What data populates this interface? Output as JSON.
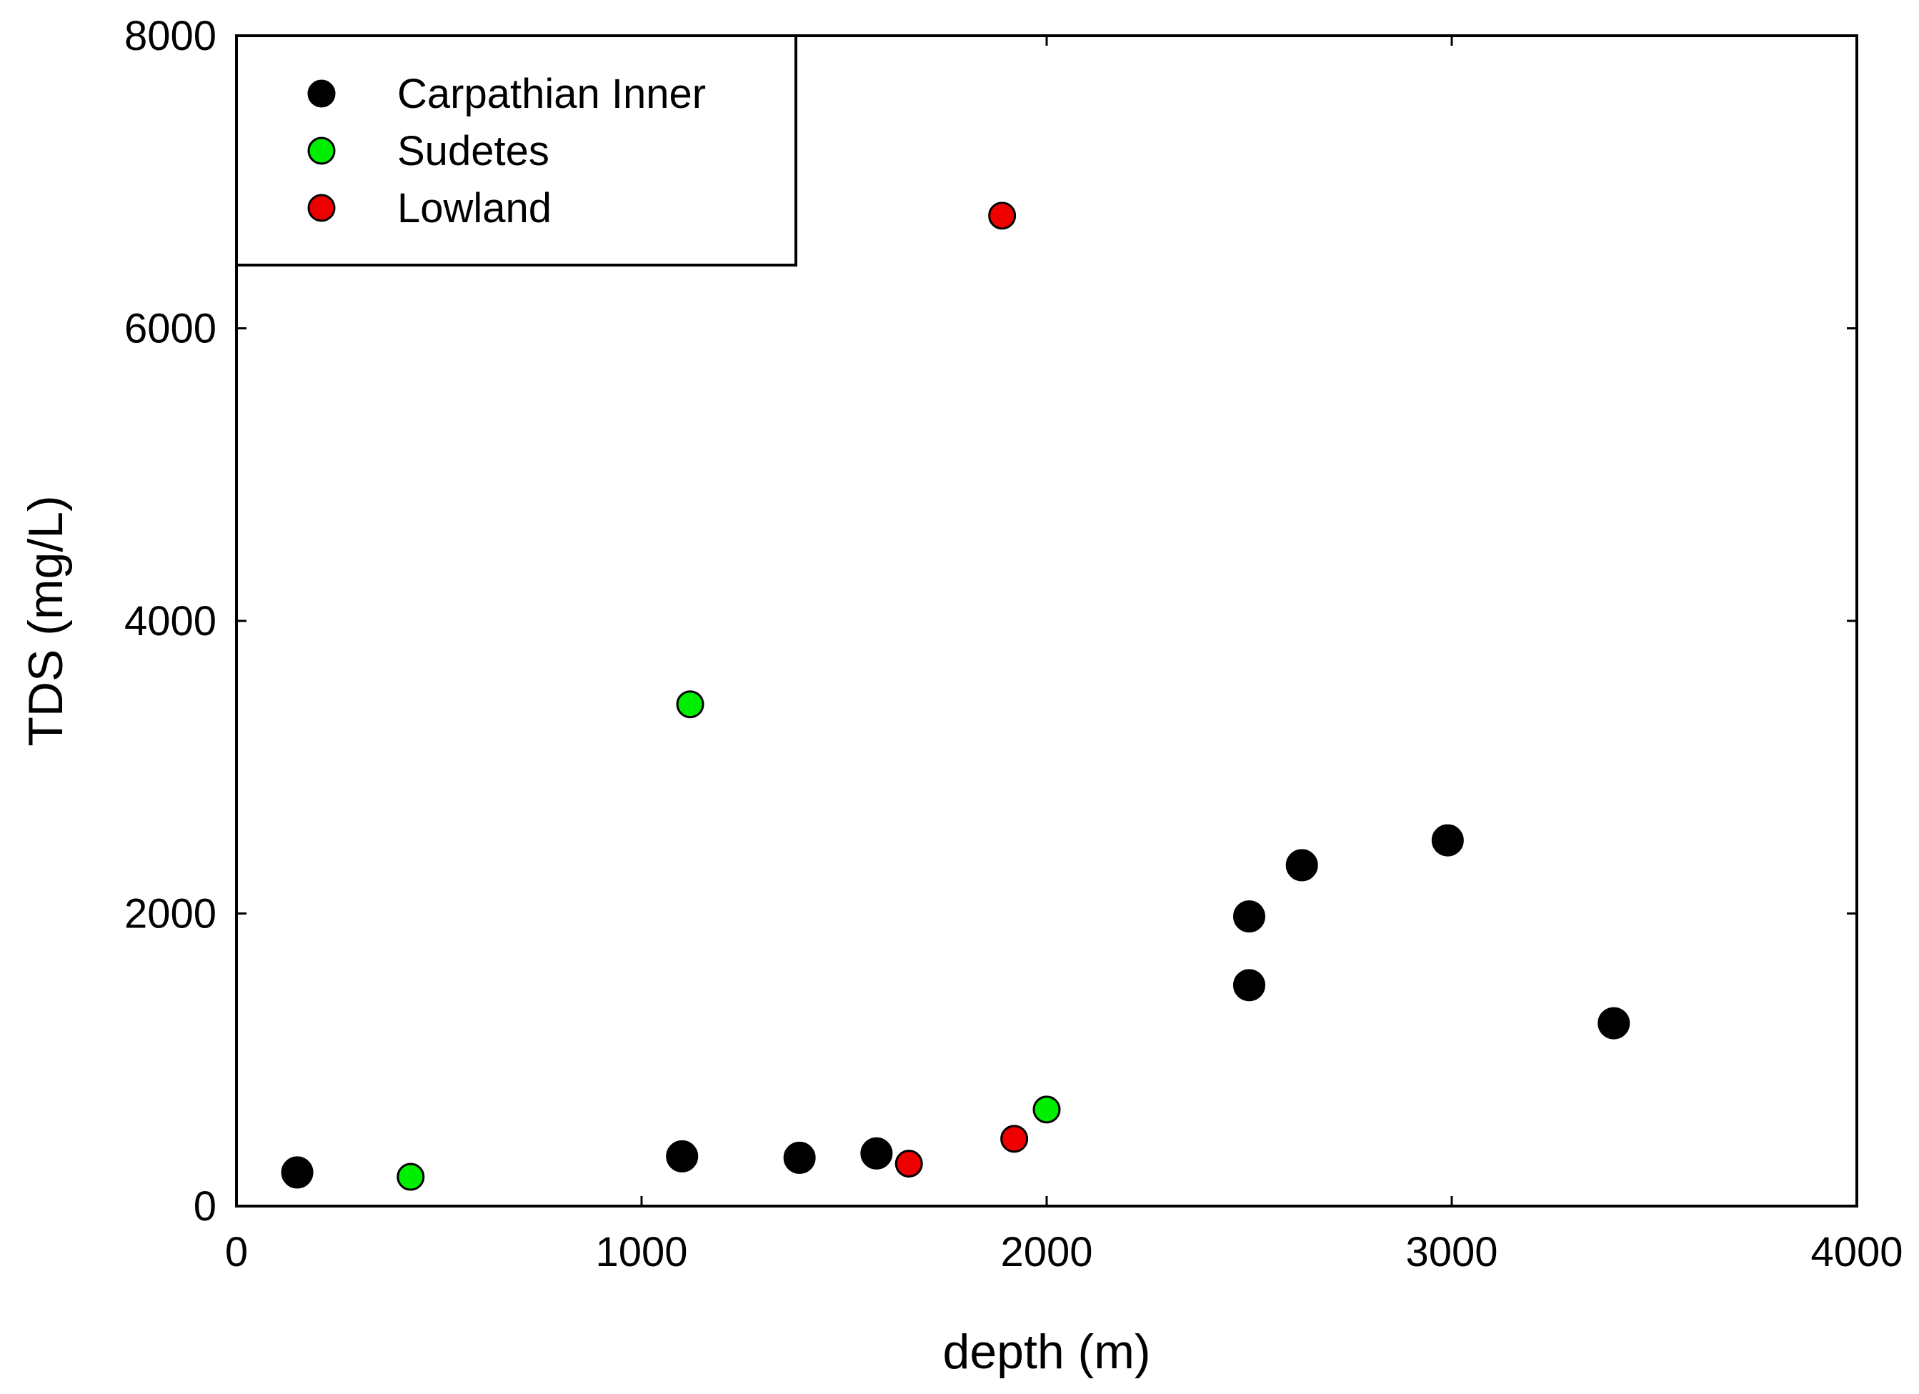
{
  "chart_data": {
    "type": "scatter",
    "title": "",
    "xlabel": "depth (m)",
    "ylabel": "TDS (mg/L)",
    "xlim": [
      0,
      4000
    ],
    "ylim": [
      0,
      8000
    ],
    "xticks": [
      0,
      1000,
      2000,
      3000,
      4000
    ],
    "yticks": [
      0,
      2000,
      4000,
      6000,
      8000
    ],
    "xtick_labels": [
      "0",
      "1000",
      "2000",
      "3000",
      "4000"
    ],
    "ytick_labels": [
      "0",
      "2000",
      "4000",
      "6000",
      "8000"
    ],
    "grid": false,
    "legend_position": "top-left",
    "series": [
      {
        "name": "Carpathian Inner",
        "color": "#000000",
        "points": [
          {
            "x": 150,
            "y": 230
          },
          {
            "x": 1100,
            "y": 340
          },
          {
            "x": 1390,
            "y": 330
          },
          {
            "x": 1580,
            "y": 360
          },
          {
            "x": 2500,
            "y": 1980
          },
          {
            "x": 2500,
            "y": 1510
          },
          {
            "x": 2630,
            "y": 2330
          },
          {
            "x": 2990,
            "y": 2500
          },
          {
            "x": 3400,
            "y": 1250
          }
        ]
      },
      {
        "name": "Sudetes",
        "color": "#00ee00",
        "points": [
          {
            "x": 430,
            "y": 200
          },
          {
            "x": 1120,
            "y": 3430
          },
          {
            "x": 2000,
            "y": 660
          }
        ]
      },
      {
        "name": "Lowland",
        "color": "#ee0000",
        "points": [
          {
            "x": 1660,
            "y": 290
          },
          {
            "x": 1890,
            "y": 6770
          },
          {
            "x": 1920,
            "y": 460
          }
        ]
      }
    ]
  }
}
